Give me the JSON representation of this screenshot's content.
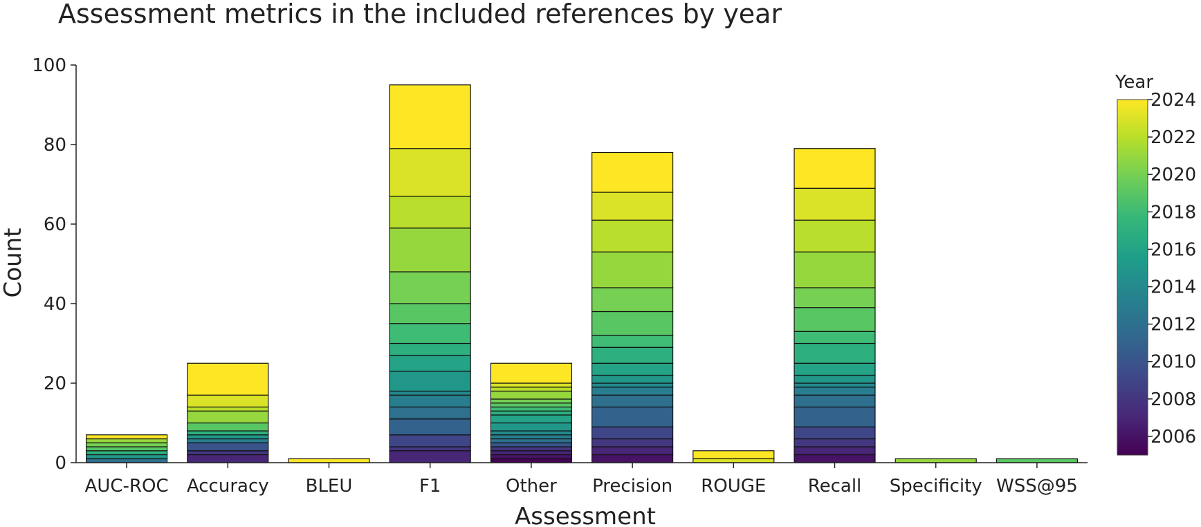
{
  "chart_data": {
    "type": "bar",
    "stacked": true,
    "title": "Assessment metrics in the included references by year",
    "xlabel": "Assessment",
    "ylabel": "Count",
    "ylim": [
      0,
      100
    ],
    "yticks": [
      "0",
      "20",
      "40",
      "60",
      "80",
      "100"
    ],
    "grid": false,
    "categories": [
      "AUC-ROC",
      "Accuracy",
      "BLEU",
      "F1",
      "Other",
      "Precision",
      "ROUGE",
      "Recall",
      "Specificity",
      "WSS@95"
    ],
    "colorbar": {
      "title": "Year",
      "range": [
        2005,
        2024
      ],
      "ticks": [
        "2006",
        "2008",
        "2010",
        "2012",
        "2014",
        "2016",
        "2018",
        "2020",
        "2022",
        "2024"
      ],
      "colorscale": [
        "#440154",
        "#482878",
        "#3e4989",
        "#31688e",
        "#26828e",
        "#1f9e89",
        "#35b779",
        "#6ece58",
        "#b5de2b",
        "#fde725"
      ],
      "position": "right"
    },
    "stacks": [
      {
        "category": "AUC-ROC",
        "segments": [
          {
            "year": 2012,
            "value": 1
          },
          {
            "year": 2015,
            "value": 1
          },
          {
            "year": 2017,
            "value": 1
          },
          {
            "year": 2019,
            "value": 1
          },
          {
            "year": 2020,
            "value": 1
          },
          {
            "year": 2021,
            "value": 1
          },
          {
            "year": 2024,
            "value": 1
          }
        ]
      },
      {
        "category": "Accuracy",
        "segments": [
          {
            "year": 2007,
            "value": 2
          },
          {
            "year": 2008,
            "value": 1
          },
          {
            "year": 2010,
            "value": 2
          },
          {
            "year": 2013,
            "value": 1
          },
          {
            "year": 2015,
            "value": 1
          },
          {
            "year": 2017,
            "value": 1
          },
          {
            "year": 2019,
            "value": 2
          },
          {
            "year": 2021,
            "value": 3
          },
          {
            "year": 2022,
            "value": 1
          },
          {
            "year": 2023,
            "value": 3
          },
          {
            "year": 2024,
            "value": 8
          }
        ]
      },
      {
        "category": "BLEU",
        "segments": [
          {
            "year": 2024,
            "value": 1
          }
        ]
      },
      {
        "category": "F1",
        "segments": [
          {
            "year": 2007,
            "value": 3
          },
          {
            "year": 2008,
            "value": 1
          },
          {
            "year": 2009,
            "value": 3
          },
          {
            "year": 2011,
            "value": 4
          },
          {
            "year": 2012,
            "value": 3
          },
          {
            "year": 2013,
            "value": 3
          },
          {
            "year": 2014,
            "value": 1
          },
          {
            "year": 2015,
            "value": 5
          },
          {
            "year": 2016,
            "value": 4
          },
          {
            "year": 2017,
            "value": 3
          },
          {
            "year": 2018,
            "value": 5
          },
          {
            "year": 2019,
            "value": 5
          },
          {
            "year": 2020,
            "value": 8
          },
          {
            "year": 2021,
            "value": 11
          },
          {
            "year": 2022,
            "value": 8
          },
          {
            "year": 2023,
            "value": 12
          },
          {
            "year": 2024,
            "value": 16
          }
        ]
      },
      {
        "category": "Other",
        "segments": [
          {
            "year": 2005,
            "value": 1
          },
          {
            "year": 2006,
            "value": 1
          },
          {
            "year": 2007,
            "value": 1
          },
          {
            "year": 2008,
            "value": 1
          },
          {
            "year": 2010,
            "value": 1
          },
          {
            "year": 2012,
            "value": 1
          },
          {
            "year": 2013,
            "value": 1
          },
          {
            "year": 2014,
            "value": 1
          },
          {
            "year": 2015,
            "value": 2
          },
          {
            "year": 2016,
            "value": 2
          },
          {
            "year": 2017,
            "value": 1
          },
          {
            "year": 2018,
            "value": 1
          },
          {
            "year": 2019,
            "value": 1
          },
          {
            "year": 2020,
            "value": 1
          },
          {
            "year": 2021,
            "value": 2
          },
          {
            "year": 2022,
            "value": 1
          },
          {
            "year": 2023,
            "value": 1
          },
          {
            "year": 2024,
            "value": 5
          }
        ]
      },
      {
        "category": "Precision",
        "segments": [
          {
            "year": 2006,
            "value": 2
          },
          {
            "year": 2007,
            "value": 2
          },
          {
            "year": 2008,
            "value": 2
          },
          {
            "year": 2009,
            "value": 3
          },
          {
            "year": 2011,
            "value": 5
          },
          {
            "year": 2012,
            "value": 3
          },
          {
            "year": 2013,
            "value": 2
          },
          {
            "year": 2014,
            "value": 1
          },
          {
            "year": 2015,
            "value": 2
          },
          {
            "year": 2016,
            "value": 3
          },
          {
            "year": 2017,
            "value": 4
          },
          {
            "year": 2018,
            "value": 3
          },
          {
            "year": 2019,
            "value": 6
          },
          {
            "year": 2020,
            "value": 6
          },
          {
            "year": 2021,
            "value": 9
          },
          {
            "year": 2022,
            "value": 8
          },
          {
            "year": 2023,
            "value": 7
          },
          {
            "year": 2024,
            "value": 10
          }
        ]
      },
      {
        "category": "ROUGE",
        "segments": [
          {
            "year": 2023,
            "value": 1
          },
          {
            "year": 2024,
            "value": 2
          }
        ]
      },
      {
        "category": "Recall",
        "segments": [
          {
            "year": 2006,
            "value": 2
          },
          {
            "year": 2007,
            "value": 2
          },
          {
            "year": 2008,
            "value": 2
          },
          {
            "year": 2009,
            "value": 3
          },
          {
            "year": 2011,
            "value": 5
          },
          {
            "year": 2012,
            "value": 3
          },
          {
            "year": 2013,
            "value": 2
          },
          {
            "year": 2014,
            "value": 1
          },
          {
            "year": 2015,
            "value": 2
          },
          {
            "year": 2016,
            "value": 3
          },
          {
            "year": 2017,
            "value": 5
          },
          {
            "year": 2018,
            "value": 3
          },
          {
            "year": 2019,
            "value": 6
          },
          {
            "year": 2020,
            "value": 5
          },
          {
            "year": 2021,
            "value": 9
          },
          {
            "year": 2022,
            "value": 8
          },
          {
            "year": 2023,
            "value": 8
          },
          {
            "year": 2024,
            "value": 10
          }
        ]
      },
      {
        "category": "Specificity",
        "segments": [
          {
            "year": 2021,
            "value": 1
          }
        ]
      },
      {
        "category": "WSS@95",
        "segments": [
          {
            "year": 2019,
            "value": 1
          }
        ]
      }
    ]
  }
}
